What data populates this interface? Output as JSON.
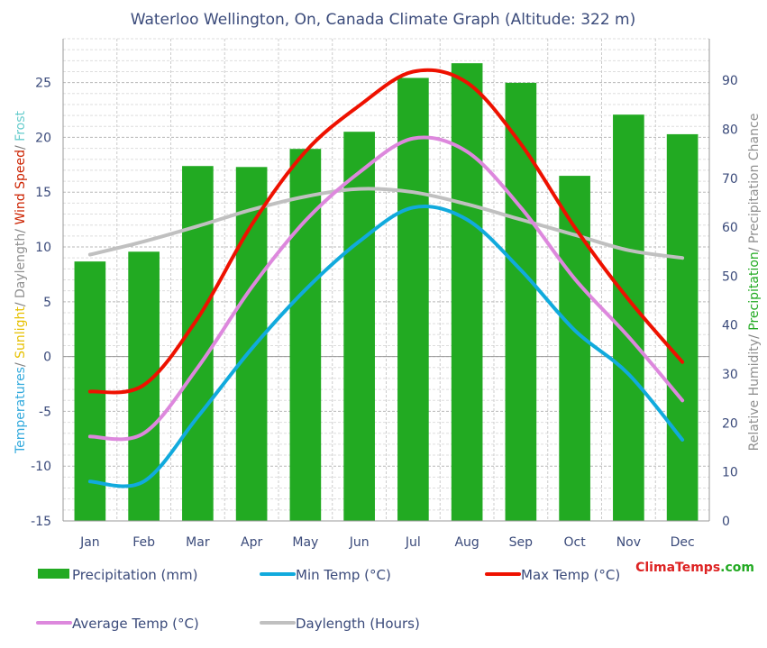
{
  "chart_data": {
    "type": "bar+line",
    "title": "Waterloo Wellington, On, Canada Climate Graph (Altitude: 322 m)",
    "categories": [
      "Jan",
      "Feb",
      "Mar",
      "Apr",
      "May",
      "Jun",
      "Jul",
      "Aug",
      "Sep",
      "Oct",
      "Nov",
      "Dec"
    ],
    "left_axis": {
      "label_parts": [
        {
          "text": "Temperatures",
          "color": "#33aadd"
        },
        {
          "text": "/ ",
          "color": "#808080"
        },
        {
          "text": "Sunlight",
          "color": "#e6c000"
        },
        {
          "text": "/ ",
          "color": "#808080"
        },
        {
          "text": "Daylength",
          "color": "#909090"
        },
        {
          "text": "/ ",
          "color": "#808080"
        },
        {
          "text": "Wind Speed",
          "color": "#cc2200"
        },
        {
          "text": "/ ",
          "color": "#808080"
        },
        {
          "text": "Frost",
          "color": "#66cccc"
        }
      ],
      "ylim": [
        -15,
        29
      ],
      "ticks": [
        -15,
        -10,
        -5,
        0,
        5,
        10,
        15,
        20,
        25
      ]
    },
    "right_axis": {
      "label_parts": [
        {
          "text": "Relative Humidity",
          "color": "#909090"
        },
        {
          "text": "/ ",
          "color": "#808080"
        },
        {
          "text": "Precipitation",
          "color": "#22aa22"
        },
        {
          "text": "/ ",
          "color": "#808080"
        },
        {
          "text": "Precipitation Chance",
          "color": "#909090"
        }
      ],
      "ylim": [
        0,
        98.5
      ],
      "ticks": [
        0,
        10,
        20,
        30,
        40,
        50,
        60,
        70,
        80,
        90
      ]
    },
    "bars": {
      "name": "Precipitation (mm)",
      "axis": "right",
      "color": "#22aa22",
      "values": [
        53,
        55,
        72.5,
        72.3,
        76,
        79.5,
        90.5,
        93.5,
        89.5,
        70.5,
        83,
        79
      ]
    },
    "series": [
      {
        "name": "Min Temp (°C)",
        "color": "#11aadd",
        "axis": "left",
        "values": [
          -11.4,
          -11.4,
          -5.5,
          0.7,
          6.1,
          10.5,
          13.6,
          12.5,
          7.9,
          2.4,
          -1.6,
          -7.6
        ]
      },
      {
        "name": "Max Temp (°C)",
        "color": "#ee1100",
        "axis": "left",
        "values": [
          -3.2,
          -2.6,
          3.5,
          12,
          18.7,
          22.9,
          26,
          25,
          19.4,
          11.8,
          5.2,
          -0.5
        ]
      },
      {
        "name": "Average Temp (°C)",
        "color": "#dd88dd",
        "axis": "left",
        "values": [
          -7.3,
          -7.0,
          -1.0,
          6.3,
          12.4,
          16.8,
          19.9,
          18.7,
          13.6,
          7.1,
          1.8,
          -4.0
        ]
      },
      {
        "name": "Daylength (Hours)",
        "color": "#c0c0c0",
        "axis": "left",
        "values": [
          9.3,
          10.5,
          11.9,
          13.4,
          14.6,
          15.3,
          15.0,
          13.9,
          12.5,
          11.1,
          9.7,
          9.0
        ]
      }
    ],
    "grid": true,
    "legend_position": "bottom"
  },
  "legend": [
    {
      "label": "Precipitation (mm)",
      "kind": "bar",
      "color": "#22aa22"
    },
    {
      "label": "Min Temp (°C)",
      "kind": "line",
      "color": "#11aadd"
    },
    {
      "label": "Max Temp (°C)",
      "kind": "line",
      "color": "#ee1100"
    },
    {
      "label": "Average Temp (°C)",
      "kind": "line",
      "color": "#dd88dd"
    },
    {
      "label": "Daylength (Hours)",
      "kind": "line",
      "color": "#c0c0c0"
    }
  ],
  "brand": {
    "part1": "Clima",
    "part1_color": "#dd2222",
    "part2": "Temps",
    "part2_color": "#dd2222",
    "part3": ".com",
    "part3_color": "#22aa22"
  }
}
